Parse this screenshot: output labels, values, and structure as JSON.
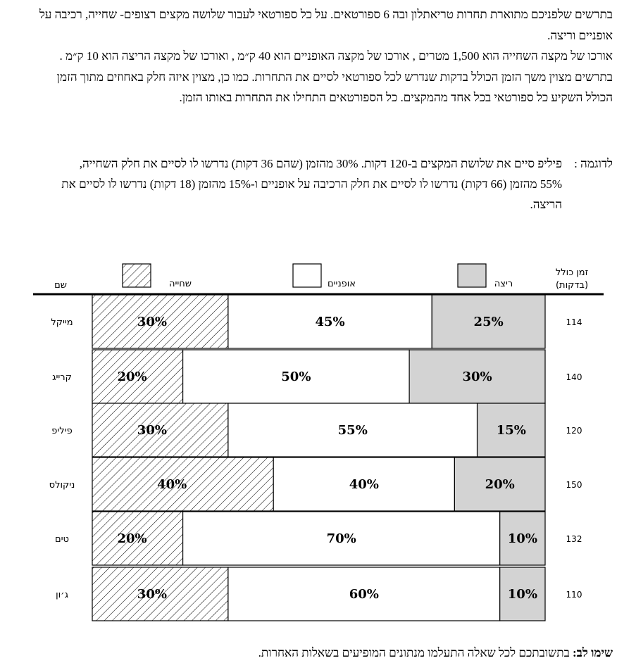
{
  "intro": {
    "p1": "בתרשים שלפניכם מתוארת תחרות טריאתלון ובה 6 ספורטאים.  על כל ספורטאי לעבור שלושה מקצים רצופים- שחייה, רכיבה על אופניים וריצה.",
    "p2": "אורכו של מקצה השחייה הוא 1,500 מטרים , אורכו של מקצה האופניים הוא 40 ק״מ , ואורכו של מקצה הריצה הוא 10 ק״מ .",
    "p3": "בתרשים מצוין משך הזמן הכולל בדקות שנדרש לכל ספורטאי לסיים את התחרות.  כמו כן, מצוין איזה חלק באחוזים מתוך הזמן הכולל השקיע כל ספורטאי בכל אחד מהמקצים. כל הספורטאים התחילו את התחרות באותו הזמן."
  },
  "example": {
    "label": "לדוגמה :",
    "text": "פיליפ סיים את שלושת המקצים ב-120 דקות. 30% מהזמן (שהם 36 דקות) נדרשו לו לסיים את חלק השחייה, 55% מהזמן (66 דקות) נדרשו לו לסיים את חלק הרכיבה על אופניים ו-15% מהזמן (18 דקות) נדרשו לו לסיים את הריצה."
  },
  "note": {
    "label": "שימו לב:",
    "text": "בתשובתכם לכל שאלה התעלמו מנתונים המופיעים בשאלות האחרות."
  },
  "chart_data": {
    "type": "bar",
    "orientation": "horizontal",
    "stacked": true,
    "normalized": true,
    "header": {
      "name": "שם",
      "total": "זמן כולל",
      "total_unit": "(בדקות)"
    },
    "legend_placement": "top",
    "categories": [
      "מייקל",
      "קרייג",
      "פיליפ",
      "ניקולס",
      "טים",
      "ג׳ון"
    ],
    "totals": [
      114,
      140,
      120,
      150,
      132,
      110
    ],
    "series": [
      {
        "name": "שחייה",
        "values": [
          30,
          20,
          30,
          40,
          20,
          30
        ],
        "fill": "hatch"
      },
      {
        "name": "אופניים",
        "values": [
          45,
          50,
          55,
          40,
          70,
          60
        ],
        "fill": "#ffffff"
      },
      {
        "name": "ריצה",
        "values": [
          25,
          30,
          15,
          20,
          10,
          10
        ],
        "fill": "#d3d3d3"
      }
    ],
    "value_suffix": "%"
  }
}
